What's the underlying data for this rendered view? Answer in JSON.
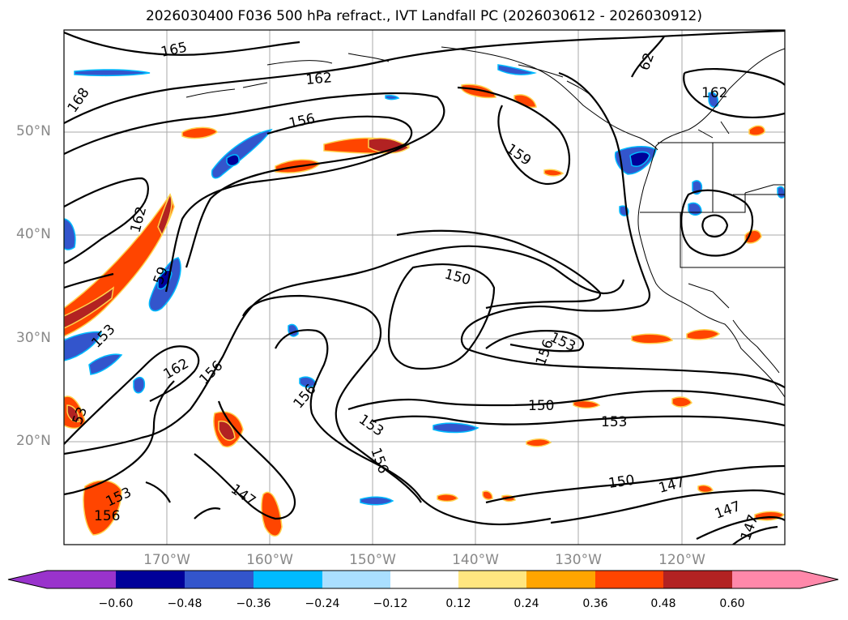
{
  "title": "2026030400 F036 500 hPa refract., IVT Landfall PC (2026030612 - 2026030912)",
  "map": {
    "lat_labels": [
      "50°N",
      "40°N",
      "30°N",
      "20°N"
    ],
    "lon_labels": [
      "170°W",
      "160°W",
      "150°W",
      "140°W",
      "130°W",
      "120°W"
    ],
    "contour_labels": [
      "165",
      "162",
      "168",
      "156",
      "159",
      "162",
      "162",
      "59",
      "153",
      "162",
      "156",
      "156",
      "150",
      "153",
      "156",
      "150",
      "153",
      "153",
      "156",
      "147",
      "153",
      "156",
      "53",
      "150",
      "147",
      "147",
      "147",
      "62"
    ]
  },
  "colorbar": {
    "ticks": [
      "−0.60",
      "−0.48",
      "−0.36",
      "−0.24",
      "−0.12",
      "0.12",
      "0.24",
      "0.36",
      "0.48",
      "0.60"
    ],
    "colors": [
      "#9933cc",
      "#000099",
      "#3355cc",
      "#00bbff",
      "#aadfff",
      "#ffffff",
      "#ffe680",
      "#ffa500",
      "#ff4500",
      "#b22222",
      "#ff88aa"
    ]
  }
}
